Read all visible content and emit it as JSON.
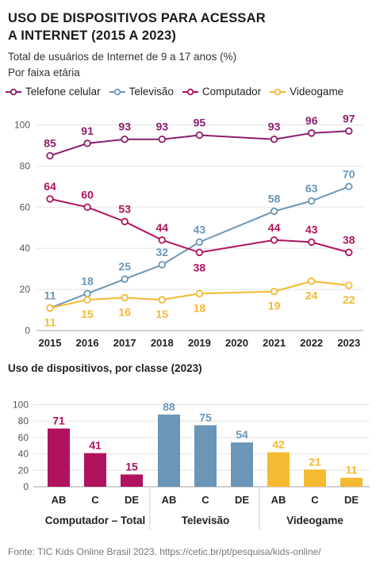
{
  "title_line1": "USO DE DISPOSITIVOS PARA ACESSAR",
  "title_line2": "A INTERNET (2015 A 2023)",
  "subtitle_line1": "Total de usuários de Internet de 9 a 17 anos (%)",
  "subtitle_line2": "Por faixa etária",
  "section2_title": "Uso de dispositivos, por classe (2023)",
  "source": "Fonte: TIC Kids Online Brasil 2023. https://cetic.br/pt/pesquisa/kids-online/",
  "colors": {
    "celular": "#8b1e6e",
    "televisao": "#6b96b8",
    "computador": "#b0125e",
    "videogame": "#f5b932"
  },
  "chart_data": [
    {
      "type": "line",
      "x": [
        "2015",
        "2016",
        "2017",
        "2018",
        "2019",
        "2020",
        "2021",
        "2022",
        "2023"
      ],
      "ylim": [
        0,
        100
      ],
      "yticks": [
        "0",
        "20",
        "40",
        "60",
        "80",
        "100"
      ],
      "grid": true,
      "legend": "top",
      "series": [
        {
          "name": "Telefone celular",
          "key": "celular",
          "values": [
            85,
            91,
            93,
            93,
            95,
            null,
            93,
            96,
            97
          ]
        },
        {
          "name": "Televisão",
          "key": "televisao",
          "values": [
            11,
            18,
            25,
            32,
            43,
            null,
            58,
            63,
            70
          ]
        },
        {
          "name": "Computador",
          "key": "computador",
          "values": [
            64,
            60,
            53,
            44,
            38,
            null,
            44,
            43,
            38
          ]
        },
        {
          "name": "Videogame",
          "key": "videogame",
          "values": [
            11,
            15,
            16,
            15,
            18,
            null,
            19,
            24,
            22
          ]
        }
      ]
    },
    {
      "type": "bar",
      "ylim": [
        0,
        100
      ],
      "yticks": [
        "0",
        "20",
        "40",
        "60",
        "80",
        "100"
      ],
      "groups": [
        {
          "name": "Computador – Total",
          "key": "computador",
          "categories": [
            "AB",
            "C",
            "DE"
          ],
          "values": [
            71,
            41,
            15
          ]
        },
        {
          "name": "Televisão",
          "key": "televisao",
          "categories": [
            "AB",
            "C",
            "DE"
          ],
          "values": [
            88,
            75,
            54
          ]
        },
        {
          "name": "Videogame",
          "key": "videogame",
          "categories": [
            "AB",
            "C",
            "DE"
          ],
          "values": [
            42,
            21,
            11
          ]
        }
      ]
    }
  ]
}
